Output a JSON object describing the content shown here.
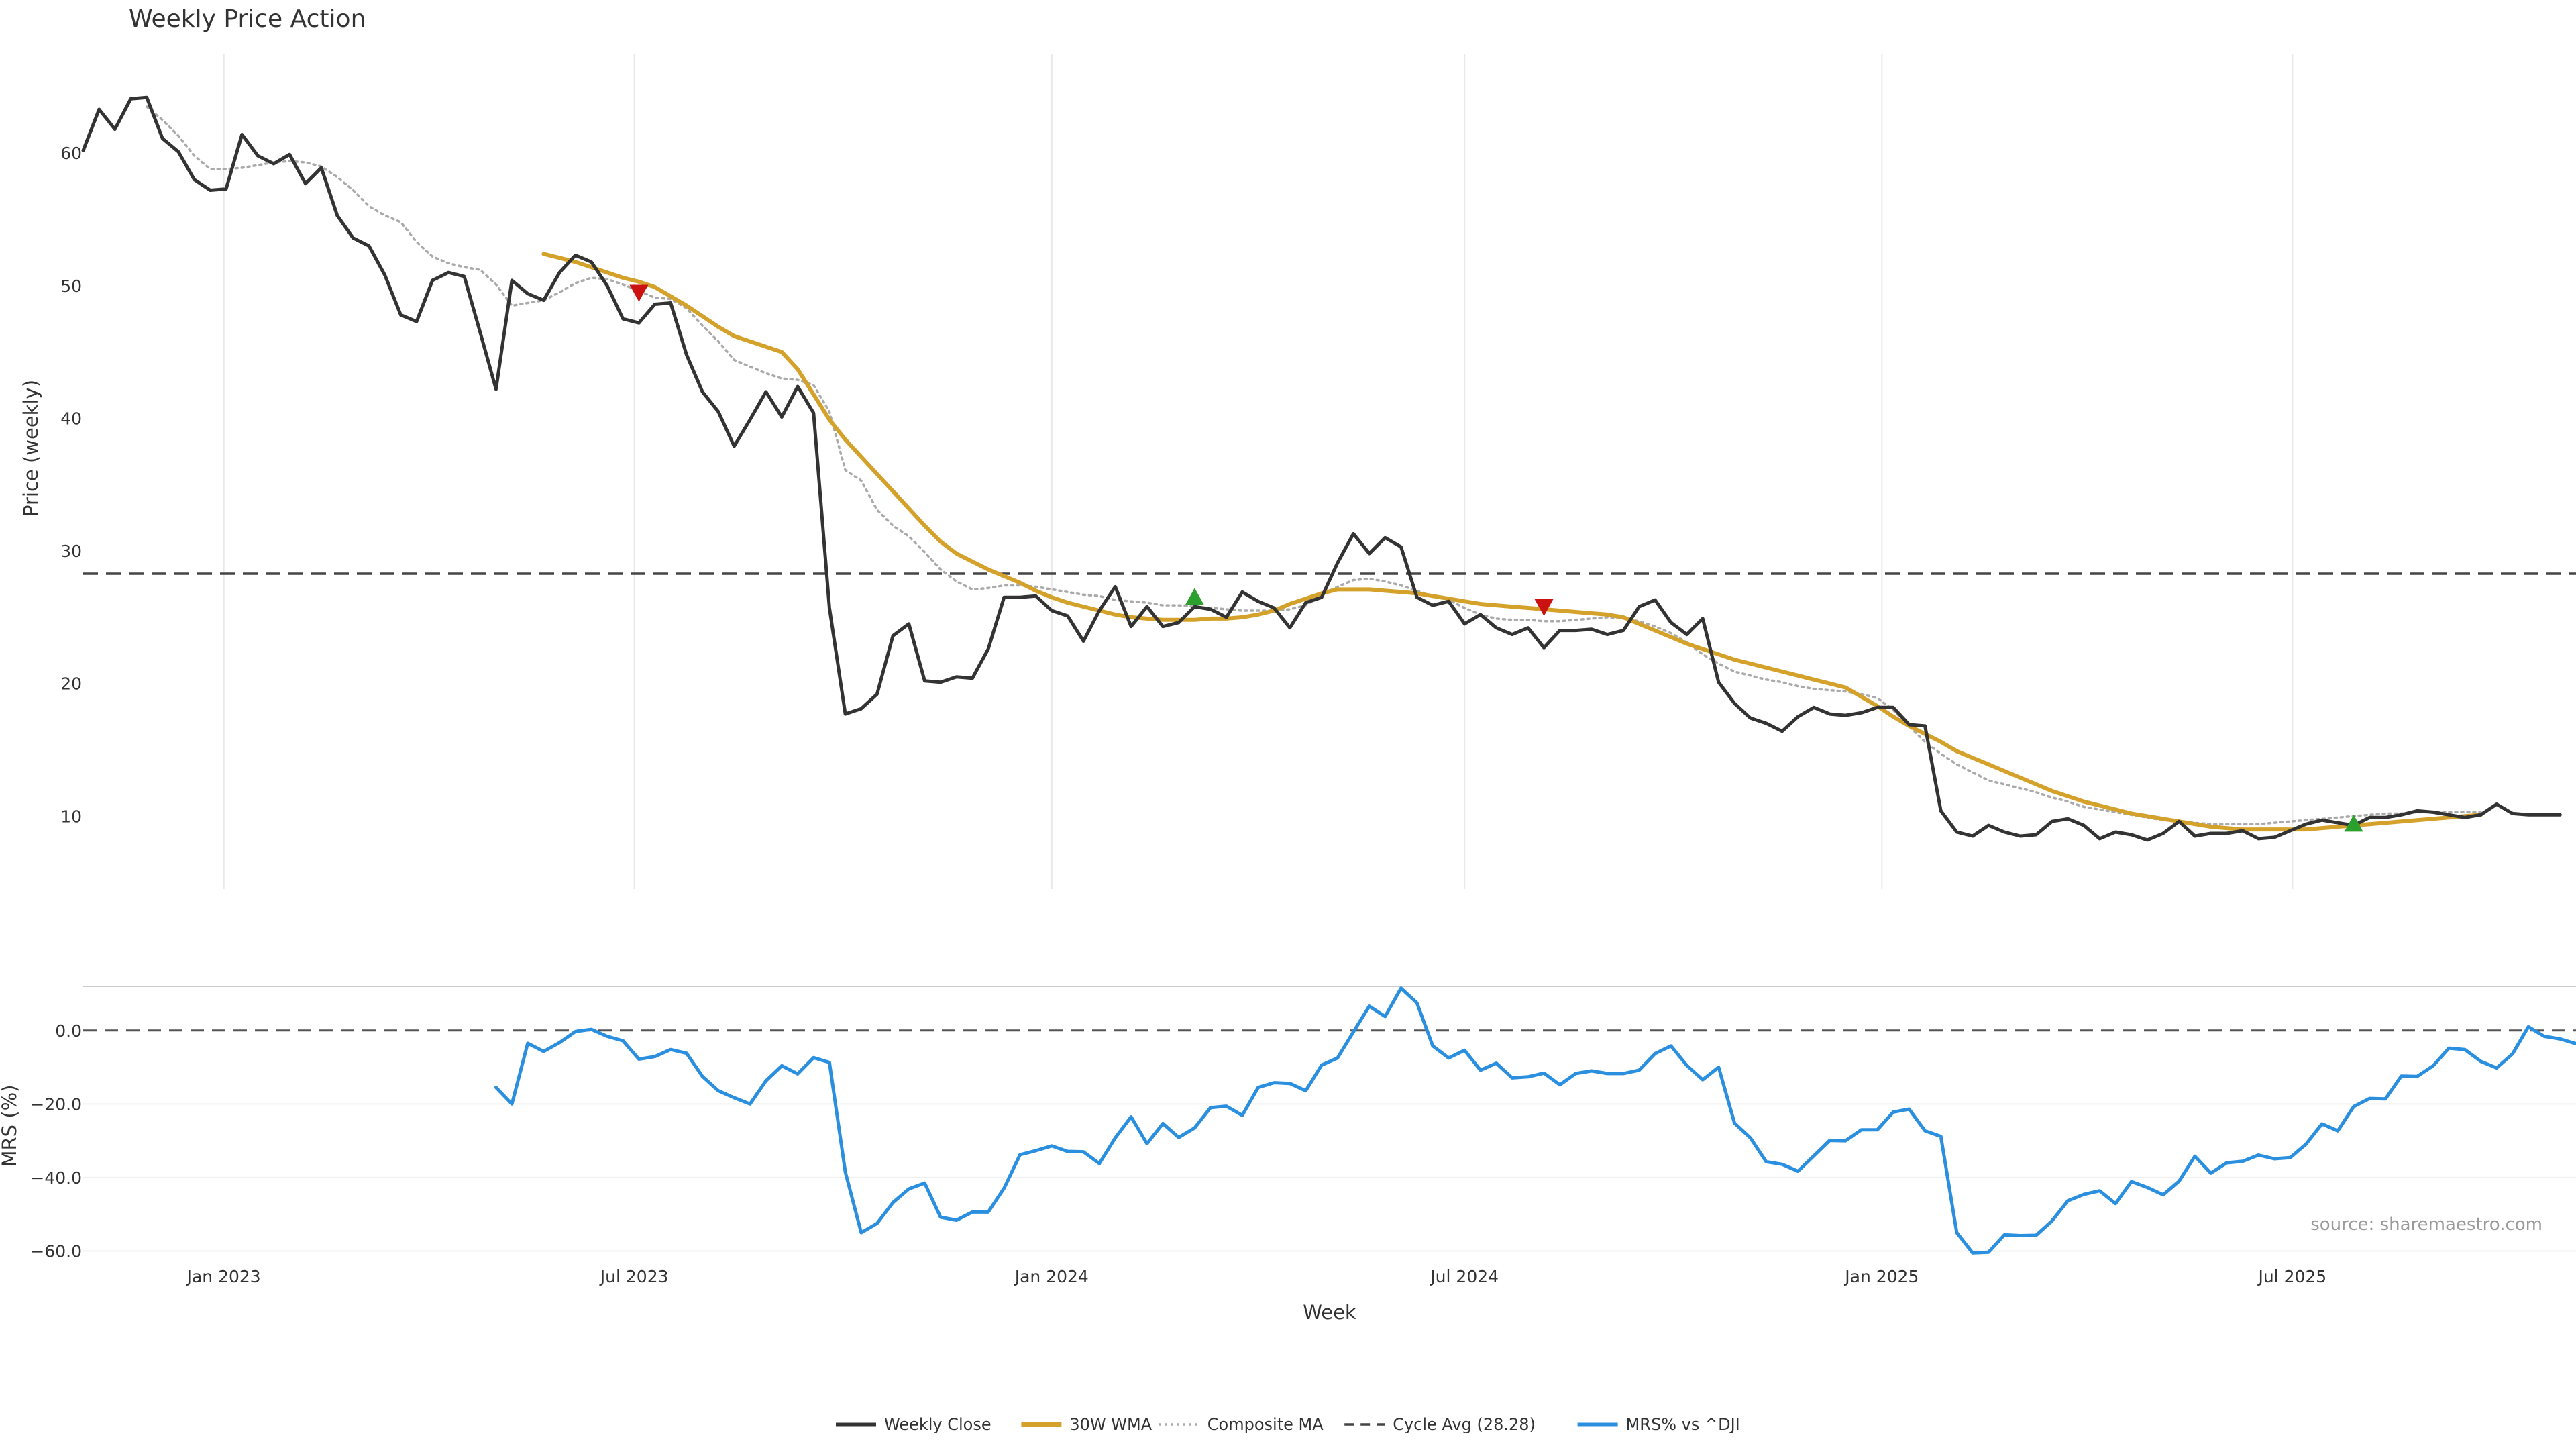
{
  "chart_data": {
    "type": "line",
    "title": "Weekly Price Action",
    "xlabel": "Week",
    "colors": {
      "close": "#333333",
      "wma": "#d4a22a",
      "composite": "#aaaaaa",
      "cycle": "#444444",
      "mrs": "#2b8fe0",
      "buy_marker": "#2ca02c",
      "sell_marker": "#cc1111",
      "grid": "#e8e8e8"
    },
    "x_ticks": [
      {
        "date": "2023-01-01",
        "label": "Jan 2023"
      },
      {
        "date": "2023-07-01",
        "label": "Jul 2023"
      },
      {
        "date": "2024-01-01",
        "label": "Jan 2024"
      },
      {
        "date": "2024-07-01",
        "label": "Jul 2024"
      },
      {
        "date": "2025-01-01",
        "label": "Jan 2025"
      },
      {
        "date": "2025-07-01",
        "label": "Jul 2025"
      }
    ],
    "x_range": [
      "2022-10-31",
      "2025-11-03"
    ],
    "start_week": "2022-10-31",
    "upper": {
      "ylabel": "Price (weekly)",
      "ylim": [
        4.5,
        67.5
      ],
      "yticks": [
        10,
        20,
        30,
        40,
        50,
        60
      ],
      "cycle_avg": 28.28,
      "series": [
        {
          "name": "Weekly Close",
          "key": "close",
          "start_index": 0,
          "values": [
            60.2,
            63.3,
            61.8,
            64.1,
            64.2,
            61.1,
            60.1,
            58.0,
            57.2,
            57.3,
            61.4,
            59.8,
            59.2,
            59.9,
            57.7,
            58.9,
            55.3,
            53.6,
            53.0,
            50.8,
            47.8,
            47.3,
            50.4,
            51.0,
            50.7,
            46.5,
            42.2,
            50.4,
            49.4,
            48.9,
            51.0,
            52.3,
            51.8,
            50.0,
            47.5,
            47.2,
            48.6,
            48.7,
            44.8,
            42.0,
            40.5,
            37.9,
            39.9,
            42.0,
            40.1,
            42.4,
            40.4,
            25.7,
            17.7,
            18.1,
            19.2,
            23.6,
            24.5,
            20.2,
            20.1,
            20.5,
            20.4,
            22.6,
            26.5,
            26.5,
            26.6,
            25.5,
            25.1,
            23.2,
            25.5,
            27.3,
            24.3,
            25.8,
            24.3,
            24.6,
            25.8,
            25.6,
            25.0,
            26.9,
            26.2,
            25.7,
            24.2,
            26.1,
            26.5,
            29.1,
            31.3,
            29.8,
            31.0,
            30.3,
            26.5,
            25.9,
            26.2,
            24.5,
            25.2,
            24.2,
            23.7,
            24.2,
            22.7,
            24.0,
            24.0,
            24.1,
            23.7,
            24.0,
            25.8,
            26.3,
            24.6,
            23.7,
            24.9,
            20.1,
            18.5,
            17.4,
            17.0,
            16.4,
            17.5,
            18.2,
            17.7,
            17.6,
            17.8,
            18.2,
            18.2,
            16.9,
            16.8,
            10.4,
            8.8,
            8.5,
            9.3,
            8.8,
            8.5,
            8.6,
            9.6,
            9.8,
            9.3,
            8.3,
            8.8,
            8.6,
            8.2,
            8.7,
            9.6,
            8.5,
            8.7,
            8.7,
            8.9,
            8.3,
            8.4,
            8.9,
            9.4,
            9.7,
            9.5,
            9.3,
            9.9,
            9.9,
            10.1,
            10.4,
            10.3,
            10.1,
            9.9,
            10.1,
            10.9,
            10.2,
            10.1,
            10.1,
            10.1
          ]
        },
        {
          "name": "30W WMA",
          "key": "wma",
          "start_index": 29,
          "values": [
            52.4,
            52.1,
            51.8,
            51.4,
            51.0,
            50.6,
            50.3,
            49.9,
            49.2,
            48.5,
            47.7,
            46.9,
            46.2,
            45.8,
            45.4,
            45.0,
            43.7,
            41.8,
            39.9,
            38.4,
            37.1,
            35.8,
            34.5,
            33.2,
            31.9,
            30.7,
            29.8,
            29.2,
            28.6,
            28.1,
            27.6,
            27.0,
            26.5,
            26.1,
            25.8,
            25.5,
            25.2,
            25.0,
            24.9,
            24.8,
            24.8,
            24.8,
            24.9,
            24.9,
            25.0,
            25.2,
            25.5,
            26.0,
            26.4,
            26.8,
            27.1,
            27.1,
            27.1,
            27.0,
            26.9,
            26.8,
            26.6,
            26.4,
            26.2,
            26.0,
            25.9,
            25.8,
            25.7,
            25.6,
            25.5,
            25.4,
            25.3,
            25.2,
            25.0,
            24.5,
            24.0,
            23.5,
            23.0,
            22.6,
            22.2,
            21.8,
            21.5,
            21.2,
            20.9,
            20.6,
            20.3,
            20.0,
            19.7,
            19.0,
            18.3,
            17.5,
            16.8,
            16.2,
            15.6,
            14.9,
            14.4,
            13.9,
            13.4,
            12.9,
            12.4,
            11.9,
            11.5,
            11.1,
            10.8,
            10.5,
            10.2,
            10.0,
            9.8,
            9.6,
            9.4,
            9.2,
            9.1,
            9.0,
            9.0,
            9.0,
            9.0,
            9.0,
            9.1,
            9.2,
            9.3,
            9.4,
            9.5,
            9.6,
            9.7,
            9.8,
            9.9,
            10.0,
            10.1
          ]
        },
        {
          "name": "Composite MA",
          "key": "composite",
          "start_index": 4,
          "values": [
            63.5,
            62.5,
            61.3,
            59.8,
            58.8,
            58.8,
            58.9,
            59.1,
            59.3,
            59.4,
            59.3,
            59.0,
            58.2,
            57.2,
            56.0,
            55.3,
            54.8,
            53.3,
            52.2,
            51.7,
            51.4,
            51.2,
            50.1,
            48.5,
            48.7,
            48.9,
            49.5,
            50.2,
            50.6,
            50.5,
            50.1,
            49.6,
            49.1,
            49.0,
            48.3,
            47.0,
            45.8,
            44.4,
            43.9,
            43.4,
            43.0,
            42.9,
            42.5,
            40.5,
            36.1,
            35.3,
            33.1,
            31.9,
            31.1,
            29.9,
            28.6,
            27.7,
            27.1,
            27.2,
            27.4,
            27.4,
            27.3,
            27.1,
            26.9,
            26.7,
            26.6,
            26.3,
            26.2,
            26.1,
            25.9,
            25.9,
            25.8,
            25.7,
            25.6,
            25.5,
            25.5,
            25.5,
            25.6,
            25.9,
            26.7,
            27.3,
            27.8,
            27.9,
            27.7,
            27.4,
            27.0,
            26.6,
            26.3,
            25.7,
            25.2,
            24.9,
            24.8,
            24.8,
            24.7,
            24.7,
            24.8,
            24.9,
            25.0,
            24.9,
            24.7,
            24.3,
            23.8,
            23.1,
            22.2,
            21.5,
            20.9,
            20.6,
            20.3,
            20.1,
            19.8,
            19.6,
            19.5,
            19.4,
            19.2,
            18.9,
            18.0,
            16.8,
            15.6,
            14.7,
            13.9,
            13.3,
            12.7,
            12.4,
            12.1,
            11.8,
            11.4,
            11.1,
            10.7,
            10.5,
            10.3,
            10.1,
            9.9,
            9.7,
            9.6,
            9.5,
            9.4,
            9.4,
            9.4,
            9.4,
            9.5,
            9.6,
            9.7,
            9.8,
            9.9,
            10.0,
            10.1,
            10.2,
            10.2,
            10.3,
            10.3,
            10.3,
            10.3,
            10.3
          ]
        },
        {
          "name": "Cycle Avg (28.28)",
          "key": "cycle",
          "constant": 28.28
        }
      ],
      "markers": [
        {
          "type": "sell",
          "date": "2023-07-03",
          "value": 49.5
        },
        {
          "type": "buy",
          "date": "2024-03-04",
          "value": 26.5
        },
        {
          "type": "sell",
          "date": "2024-08-05",
          "value": 25.8
        },
        {
          "type": "buy",
          "date": "2025-07-28",
          "value": 9.4
        }
      ]
    },
    "lower": {
      "ylabel": "MRS (%)",
      "ylim": [
        -61,
        12
      ],
      "yticks": [
        0.0,
        -20.0,
        -40.0,
        -60.0
      ],
      "ytick_labels": [
        "0.0",
        "−20.0",
        "−40.0",
        "−60.0"
      ],
      "zero_line": 0,
      "series": [
        {
          "name": "MRS% vs ^DJI",
          "key": "mrs",
          "start_index": 26,
          "values": [
            -15.5,
            -20.0,
            -3.5,
            -5.7,
            -3.3,
            -0.3,
            0.3,
            -1.6,
            -2.8,
            -7.8,
            -7.1,
            -5.2,
            -6.2,
            -12.5,
            -16.4,
            -18.3,
            -20.0,
            -13.7,
            -9.6,
            -11.8,
            -7.4,
            -8.7,
            -38.5,
            -55.0,
            -52.5,
            -46.8,
            -43.1,
            -41.5,
            -50.8,
            -51.6,
            -49.4,
            -49.4,
            -42.9,
            -33.8,
            -32.7,
            -31.4,
            -32.9,
            -33.0,
            -36.2,
            -29.2,
            -23.5,
            -30.8,
            -25.3,
            -29.1,
            -26.5,
            -21.0,
            -20.6,
            -23.1,
            -15.5,
            -14.2,
            -14.4,
            -16.4,
            -9.4,
            -7.5,
            -0.4,
            6.6,
            3.8,
            11.5,
            7.5,
            -4.2,
            -7.5,
            -5.4,
            -10.8,
            -8.9,
            -12.9,
            -12.6,
            -11.6,
            -14.8,
            -11.7,
            -11.0,
            -11.7,
            -11.7,
            -10.8,
            -6.3,
            -4.2,
            -9.5,
            -13.4,
            -10.0,
            -25.2,
            -29.2,
            -35.7,
            -36.4,
            -38.3,
            -34.1,
            -29.9,
            -30.0,
            -27.0,
            -27.0,
            -22.2,
            -21.4,
            -27.3,
            -28.8,
            -55.0,
            -60.5,
            -60.3,
            -55.6,
            -55.8,
            -55.7,
            -51.8,
            -46.3,
            -44.6,
            -43.6,
            -47.1,
            -41.1,
            -42.7,
            -44.7,
            -41.0,
            -34.2,
            -38.8,
            -36.0,
            -35.6,
            -33.9,
            -34.9,
            -34.6,
            -30.9,
            -25.4,
            -27.3,
            -20.7,
            -18.5,
            -18.6,
            -12.4,
            -12.5,
            -9.6,
            -4.8,
            -5.2,
            -8.4,
            -10.2,
            -6.4,
            1.0,
            -1.6,
            -2.3,
            -3.6
          ]
        }
      ]
    },
    "source": "source: sharemaestro.com",
    "legend": {
      "position": "bottom-center",
      "items": [
        {
          "label": "Weekly Close",
          "key": "close",
          "style": "solid"
        },
        {
          "label": "30W WMA",
          "key": "wma",
          "style": "solid"
        },
        {
          "label": "Composite MA",
          "key": "composite",
          "style": "dotted"
        },
        {
          "label": "Cycle Avg (28.28)",
          "key": "cycle",
          "style": "dashed"
        },
        {
          "label": "MRS% vs ^DJI",
          "key": "mrs",
          "style": "solid"
        }
      ]
    }
  }
}
